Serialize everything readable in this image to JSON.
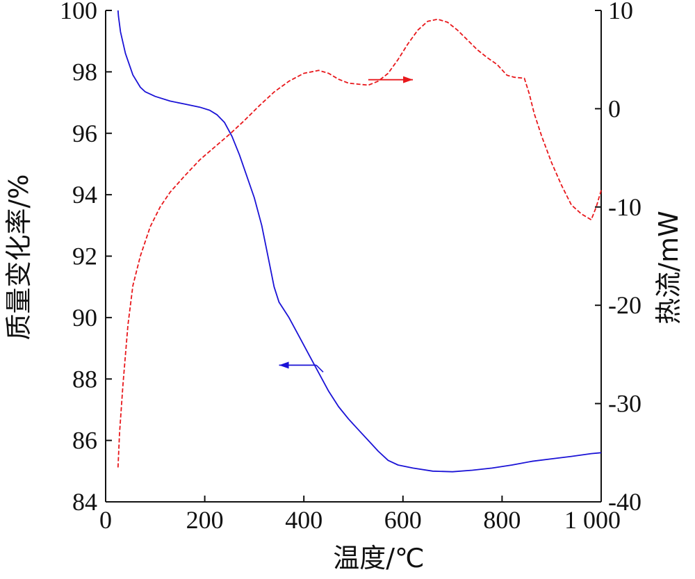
{
  "chart_data": {
    "type": "line",
    "x_axis": {
      "label": "温度/℃",
      "range": [
        0,
        1000
      ],
      "ticks": [
        0,
        200,
        400,
        600,
        800,
        1000
      ],
      "tick_labels": [
        "0",
        "200",
        "400",
        "600",
        "800",
        "1 000"
      ]
    },
    "y_axis_left": {
      "label": "质量变化率/%",
      "range": [
        84,
        100
      ],
      "ticks": [
        84,
        86,
        88,
        90,
        92,
        94,
        96,
        98,
        100
      ],
      "tick_labels": [
        "84",
        "86",
        "88",
        "90",
        "92",
        "94",
        "96",
        "98",
        "100"
      ]
    },
    "y_axis_right": {
      "label": "热流/mW",
      "range": [
        -40,
        10
      ],
      "ticks": [
        -40,
        -30,
        -20,
        -10,
        0,
        10
      ],
      "tick_labels": [
        "-40",
        "-30",
        "-20",
        "-10",
        "0",
        "10"
      ]
    },
    "grid": false,
    "series": [
      {
        "axis": "left",
        "color": "#1a12d6",
        "style": "solid",
        "x": [
          25,
          26,
          30,
          40,
          55,
          70,
          80,
          100,
          130,
          160,
          190,
          210,
          225,
          240,
          255,
          270,
          285,
          300,
          315,
          330,
          340,
          350,
          370,
          390,
          410,
          430,
          450,
          470,
          490,
          510,
          530,
          550,
          570,
          590,
          620,
          660,
          700,
          740,
          780,
          820,
          860,
          900,
          940,
          980,
          1000
        ],
        "y": [
          100.0,
          99.8,
          99.3,
          98.6,
          97.9,
          97.5,
          97.35,
          97.2,
          97.05,
          96.95,
          96.85,
          96.75,
          96.6,
          96.35,
          95.9,
          95.3,
          94.6,
          93.9,
          93.0,
          91.8,
          91.0,
          90.5,
          90.0,
          89.4,
          88.8,
          88.2,
          87.6,
          87.1,
          86.7,
          86.35,
          86.0,
          85.65,
          85.35,
          85.2,
          85.1,
          85.0,
          84.98,
          85.03,
          85.1,
          85.2,
          85.32,
          85.4,
          85.48,
          85.57,
          85.6
        ]
      },
      {
        "axis": "right",
        "color": "#e8171b",
        "style": "dashed",
        "x": [
          25,
          28,
          35,
          45,
          55,
          70,
          90,
          110,
          130,
          160,
          190,
          220,
          250,
          280,
          310,
          340,
          370,
          400,
          430,
          450,
          470,
          490,
          510,
          530,
          550,
          570,
          590,
          610,
          630,
          650,
          670,
          690,
          710,
          730,
          750,
          770,
          790,
          810,
          825,
          845,
          855,
          865,
          880,
          900,
          920,
          940,
          960,
          980,
          990,
          1000
        ],
        "y": [
          -36.5,
          -33,
          -28,
          -22,
          -18,
          -15,
          -12,
          -10,
          -8.5,
          -6.8,
          -5.2,
          -3.9,
          -2.6,
          -1.2,
          0.3,
          1.7,
          2.8,
          3.6,
          3.9,
          3.6,
          3.0,
          2.6,
          2.5,
          2.4,
          2.8,
          3.6,
          5.0,
          6.6,
          8.0,
          8.9,
          9.1,
          8.8,
          8.0,
          7.0,
          6.0,
          5.2,
          4.5,
          3.4,
          3.2,
          3.1,
          1.5,
          -0.5,
          -2.8,
          -5.5,
          -7.8,
          -9.8,
          -10.7,
          -11.3,
          -10.0,
          -8.3
        ]
      }
    ],
    "annotations": [
      {
        "type": "arrow",
        "direction": "left",
        "color": "#1a12d6",
        "series": 0
      },
      {
        "type": "arrow",
        "direction": "right",
        "color": "#e8171b",
        "series": 1
      }
    ]
  }
}
